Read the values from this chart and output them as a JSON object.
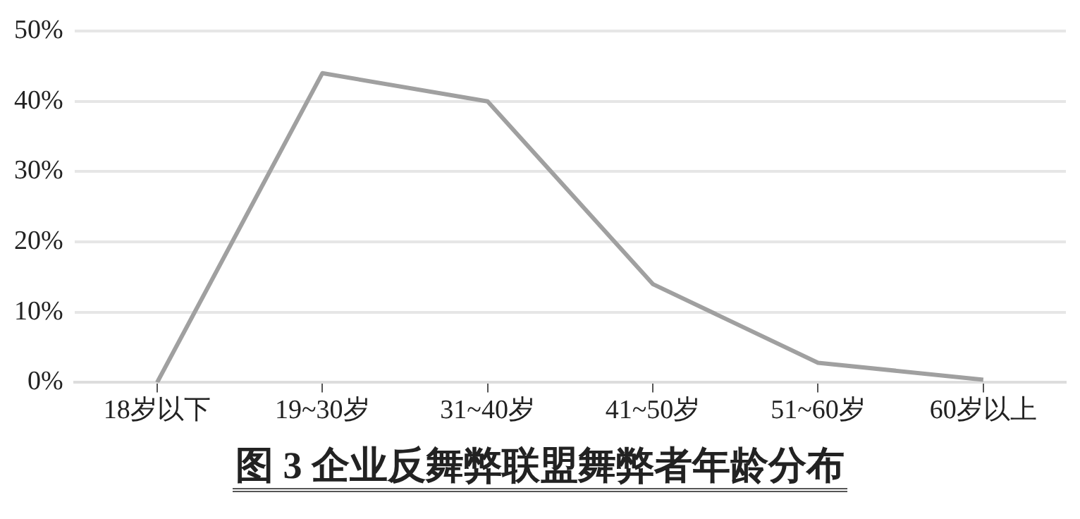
{
  "chart_data": {
    "type": "line",
    "title": "图 3  企业反舞弊联盟舞弊者年龄分布",
    "categories": [
      "18岁以下",
      "19~30岁",
      "31~40岁",
      "41~50岁",
      "51~60岁",
      "60岁以上"
    ],
    "values": [
      0,
      44,
      40,
      14,
      2.8,
      0.4
    ],
    "color": "#a0a0a0",
    "ylim": [
      0,
      50
    ],
    "yticks": [
      {
        "value": 0,
        "label": "0%"
      },
      {
        "value": 10,
        "label": "10%"
      },
      {
        "value": 20,
        "label": "20%"
      },
      {
        "value": 30,
        "label": "30%"
      },
      {
        "value": 40,
        "label": "40%"
      },
      {
        "value": 50,
        "label": "50%"
      }
    ],
    "grid": "y",
    "legend": false,
    "marker": "none",
    "line_style": "solid"
  }
}
